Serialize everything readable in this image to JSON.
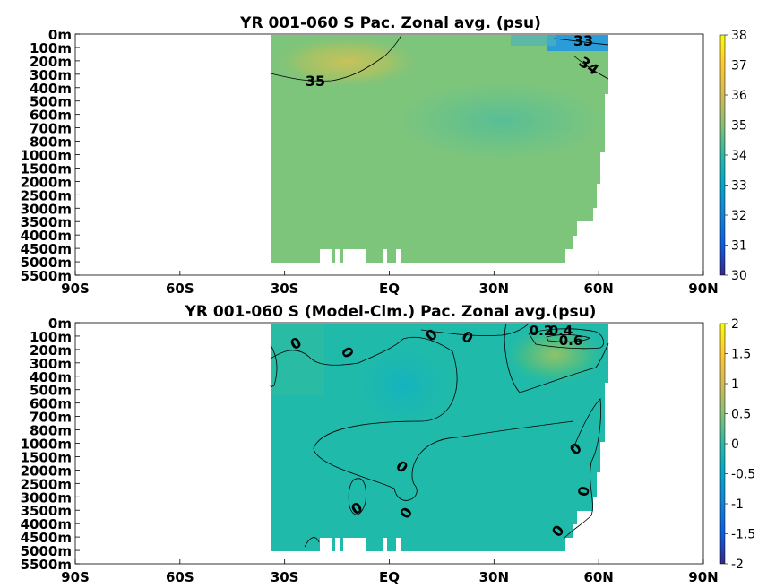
{
  "chart_data": [
    {
      "type": "heatmap",
      "title": "YR 001-060 S Pac. Zonal avg. (psu)",
      "x_ticks": [
        "90S",
        "60S",
        "30S",
        "EQ",
        "30N",
        "60N",
        "90N"
      ],
      "xlim": [
        -90,
        90
      ],
      "y_ticks": [
        "0m",
        "100m",
        "200m",
        "300m",
        "400m",
        "500m",
        "600m",
        "700m",
        "800m",
        "1000m",
        "1500m",
        "2000m",
        "2500m",
        "3000m",
        "3500m",
        "4000m",
        "4500m",
        "5000m",
        "5500m"
      ],
      "colorbar": {
        "ticks": [
          30,
          31,
          32,
          33,
          34,
          35,
          36,
          37,
          38
        ],
        "range": [
          30,
          38
        ],
        "colormap": "parula"
      },
      "contour_labels": [
        "33",
        "34",
        "35"
      ],
      "data_extent": {
        "lat_min": -35,
        "lat_max": 61
      },
      "typical_value": 34.6
    },
    {
      "type": "heatmap",
      "title": "YR 001-060 S (Model-Clm.) Pac. Zonal avg.(psu)",
      "x_ticks": [
        "90S",
        "60S",
        "30S",
        "EQ",
        "30N",
        "60N",
        "90N"
      ],
      "xlim": [
        -90,
        90
      ],
      "y_ticks": [
        "0m",
        "100m",
        "200m",
        "300m",
        "400m",
        "500m",
        "600m",
        "700m",
        "800m",
        "1000m",
        "1500m",
        "2000m",
        "2500m",
        "3000m",
        "3500m",
        "4000m",
        "4500m",
        "5000m",
        "5500m"
      ],
      "colorbar": {
        "ticks": [
          2,
          1.5,
          1,
          0.5,
          0,
          -0.5,
          -1,
          -1.5,
          -2
        ],
        "range": [
          -2,
          2
        ],
        "colormap": "parula"
      },
      "contour_labels": [
        "0",
        "0",
        "0",
        "0",
        "0",
        "0",
        "0",
        "0",
        "0",
        "0",
        "0.2",
        "0.4",
        "0.6"
      ],
      "data_extent": {
        "lat_min": -35,
        "lat_max": 61
      },
      "typical_value": -0.1
    }
  ]
}
